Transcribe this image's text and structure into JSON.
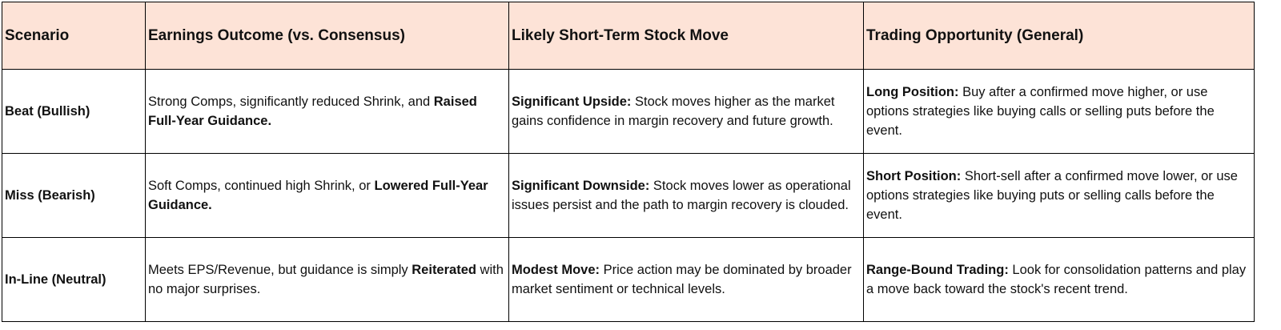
{
  "table": {
    "headers": [
      "Scenario",
      "Earnings Outcome (vs. Consensus)",
      "Likely Short-Term Stock Move",
      "Trading Opportunity (General)"
    ],
    "rows": [
      [
        [
          {
            "text": "Beat (Bullish)",
            "bold": true
          }
        ],
        [
          {
            "text": "Strong Comps, significantly reduced Shrink, and ",
            "bold": false
          },
          {
            "text": "Raised Full-Year Guidance.",
            "bold": true
          }
        ],
        [
          {
            "text": "Significant Upside:",
            "bold": true
          },
          {
            "text": " Stock moves higher as the market gains confidence in margin recovery and future growth.",
            "bold": false
          }
        ],
        [
          {
            "text": "Long Position:",
            "bold": true
          },
          {
            "text": " Buy after a confirmed move higher, or use options strategies like buying calls or selling puts before the event.",
            "bold": false
          }
        ]
      ],
      [
        [
          {
            "text": "Miss (Bearish)",
            "bold": true
          }
        ],
        [
          {
            "text": "Soft Comps, continued high Shrink, or ",
            "bold": false
          },
          {
            "text": "Lowered Full-Year Guidance.",
            "bold": true
          }
        ],
        [
          {
            "text": "Significant Downside:",
            "bold": true
          },
          {
            "text": " Stock moves lower as operational issues persist and the path to margin recovery is clouded.",
            "bold": false
          }
        ],
        [
          {
            "text": "Short Position:",
            "bold": true
          },
          {
            "text": " Short-sell after a confirmed move lower, or use options strategies like buying puts or selling calls before the event.",
            "bold": false
          }
        ]
      ],
      [
        [
          {
            "text": "In-Line (Neutral)",
            "bold": true
          }
        ],
        [
          {
            "text": "Meets EPS/Revenue, but guidance is simply ",
            "bold": false
          },
          {
            "text": "Reiterated",
            "bold": true
          },
          {
            "text": " with no major surprises.",
            "bold": false
          }
        ],
        [
          {
            "text": "Modest Move:",
            "bold": true
          },
          {
            "text": " Price action may be dominated by broader market sentiment or technical levels.",
            "bold": false
          }
        ],
        [
          {
            "text": "Range-Bound Trading:",
            "bold": true
          },
          {
            "text": " Look for consolidation patterns and play a move back toward the stock's recent trend.",
            "bold": false
          }
        ]
      ]
    ]
  }
}
